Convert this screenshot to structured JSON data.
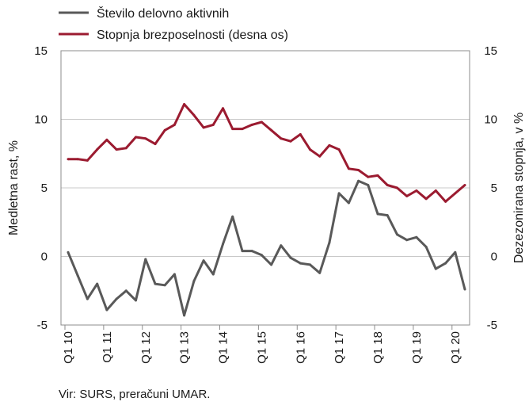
{
  "chart_data": {
    "type": "line",
    "categories": [
      "Q1 10",
      "Q2 10",
      "Q3 10",
      "Q4 10",
      "Q1 11",
      "Q2 11",
      "Q3 11",
      "Q4 11",
      "Q1 12",
      "Q2 12",
      "Q3 12",
      "Q4 12",
      "Q1 13",
      "Q2 13",
      "Q3 13",
      "Q4 13",
      "Q1 14",
      "Q2 14",
      "Q3 14",
      "Q4 14",
      "Q1 15",
      "Q2 15",
      "Q3 15",
      "Q4 15",
      "Q1 16",
      "Q2 16",
      "Q3 16",
      "Q4 16",
      "Q1 17",
      "Q2 17",
      "Q3 17",
      "Q4 17",
      "Q1 18",
      "Q2 18",
      "Q3 18",
      "Q4 18",
      "Q1 19",
      "Q2 19",
      "Q3 19",
      "Q4 19",
      "Q1 20",
      "Q2 20"
    ],
    "tick_labels": [
      "Q1 10",
      "Q1 11",
      "Q1 12",
      "Q1 13",
      "Q1 14",
      "Q1 15",
      "Q1 16",
      "Q1 17",
      "Q1 18",
      "Q1 19",
      "Q1 20"
    ],
    "series": [
      {
        "name": "Število delovno aktivnih",
        "axis": "left",
        "color": "#595959",
        "values": [
          0.3,
          -1.4,
          -3.1,
          -2.0,
          -3.9,
          -3.1,
          -2.5,
          -3.2,
          -0.2,
          -2.0,
          -2.1,
          -1.3,
          -4.3,
          -1.8,
          -0.3,
          -1.3,
          0.9,
          2.9,
          0.4,
          0.4,
          0.1,
          -0.6,
          0.8,
          -0.1,
          -0.5,
          -0.6,
          -1.2,
          1.0,
          4.6,
          3.9,
          5.5,
          5.2,
          3.1,
          3.0,
          1.6,
          1.2,
          1.4,
          0.7,
          -0.9,
          -0.5,
          0.3,
          -2.4
        ]
      },
      {
        "name": "Stopnja brezposelnosti (desna os)",
        "axis": "right",
        "color": "#9b1b30",
        "values": [
          7.1,
          7.1,
          7.0,
          7.8,
          8.5,
          7.8,
          7.9,
          8.7,
          8.6,
          8.2,
          9.2,
          9.6,
          11.1,
          10.3,
          9.4,
          9.6,
          10.8,
          9.3,
          9.3,
          9.6,
          9.8,
          9.2,
          8.6,
          8.4,
          8.9,
          7.8,
          7.3,
          8.1,
          7.8,
          6.4,
          6.3,
          5.8,
          5.9,
          5.2,
          5.0,
          4.4,
          4.8,
          4.2,
          4.8,
          4.0,
          4.6,
          5.2
        ]
      }
    ],
    "ylabel": "Medletna rast, %",
    "y2label": "Dezezonirana stopnja, v %",
    "ylim": [
      -5,
      15
    ],
    "y2lim": [
      -5,
      15
    ],
    "yticks": [
      "15",
      "10",
      "5",
      "0",
      "-5"
    ],
    "y2ticks": [
      "15",
      "10",
      "5",
      "0",
      "-5"
    ],
    "grid": true,
    "legend_position": "top-left"
  },
  "source": "Vir: SURS, preračuni UMAR."
}
